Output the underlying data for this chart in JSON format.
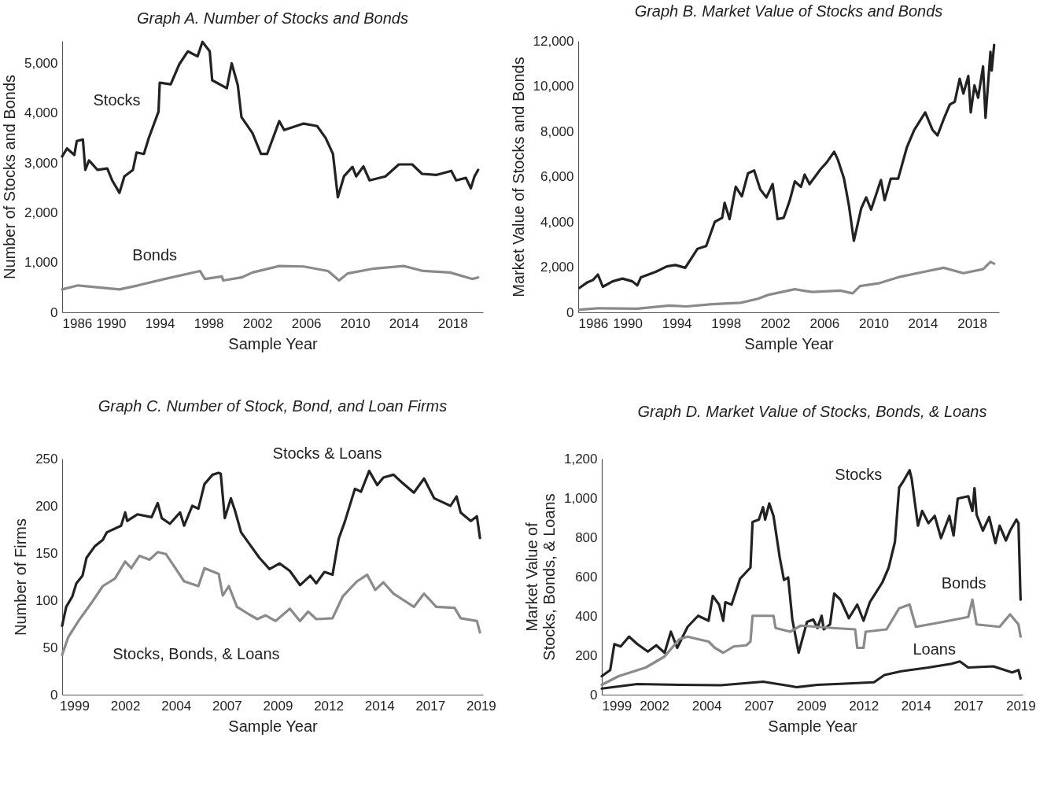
{
  "chart_data": [
    {
      "type": "line",
      "title": "Graph A. Number of Stocks and Bonds",
      "xlabel": "Sample Year",
      "ylabel": "Number of Stocks and Bonds",
      "xlim": [
        1986,
        2020.5
      ],
      "xticks": [
        1986,
        1990,
        1994,
        1998,
        2002,
        2006,
        2010,
        2014,
        2018
      ],
      "ylim": [
        0,
        5450
      ],
      "yticks": [
        0,
        {
          "value": 1000,
          "label": "1,000"
        },
        {
          "value": 2000,
          "label": "2,000"
        },
        {
          "value": 3000,
          "label": "3,000"
        },
        {
          "value": 4000,
          "label": "4,000"
        },
        {
          "value": 5000,
          "label": "5,000"
        }
      ],
      "series": [
        {
          "name": "Stocks",
          "color": "#222222",
          "x": [
            1986.0,
            1986.4,
            1987.0,
            1987.2,
            1987.7,
            1987.9,
            1988.2,
            1988.9,
            1989.7,
            1990.1,
            1990.7,
            1991.1,
            1991.8,
            1992.1,
            1992.7,
            1993.1,
            1993.9,
            1994.0,
            1994.9,
            1995.6,
            1996.3,
            1997.1,
            1997.5,
            1998.1,
            1998.3,
            1999.5,
            1999.9,
            2000.4,
            2000.7,
            2001.6,
            2002.3,
            2002.8,
            2003.8,
            2004.2,
            2005.8,
            2006.9,
            2007.6,
            2008.2,
            2008.6,
            2009.1,
            2009.8,
            2010.1,
            2010.7,
            2011.2,
            2012.5,
            2013.6,
            2014.7,
            2015.5,
            2016.7,
            2017.9,
            2018.3,
            2019.1,
            2019.5,
            2019.8,
            2020.1
          ],
          "values": [
            3130,
            3290,
            3160,
            3440,
            3470,
            2860,
            3050,
            2860,
            2890,
            2650,
            2400,
            2730,
            2860,
            3210,
            3180,
            3500,
            4030,
            4610,
            4580,
            4980,
            5240,
            5140,
            5430,
            5240,
            4660,
            4500,
            5000,
            4560,
            3920,
            3600,
            3180,
            3180,
            3840,
            3660,
            3790,
            3740,
            3500,
            3180,
            2310,
            2730,
            2920,
            2730,
            2930,
            2650,
            2730,
            2970,
            2970,
            2780,
            2760,
            2840,
            2650,
            2700,
            2490,
            2730,
            2860
          ]
        },
        {
          "name": "Bonds",
          "color": "#8a8a8a",
          "x": [
            1986.0,
            1987.3,
            1990.7,
            1992.2,
            1994.4,
            1997.3,
            1997.7,
            1999.1,
            1999.2,
            2000.7,
            2001.6,
            2003.8,
            2005.8,
            2007.8,
            2008.7,
            2009.4,
            2011.6,
            2014.0,
            2015.6,
            2017.8,
            2019.6,
            2020.1
          ],
          "values": [
            460,
            540,
            460,
            540,
            670,
            830,
            670,
            720,
            640,
            700,
            800,
            930,
            920,
            830,
            640,
            780,
            880,
            930,
            830,
            800,
            670,
            700
          ]
        }
      ]
    },
    {
      "type": "line",
      "title": "Graph B. Market Value of Stocks and Bonds",
      "xlabel": "Sample Year",
      "ylabel": "Market Value of Stocks and Bonds",
      "xlim": [
        1986,
        2020.2
      ],
      "xticks": [
        1986,
        1990,
        1994,
        1998,
        2002,
        2006,
        2010,
        2014,
        2018
      ],
      "ylim": [
        0,
        12000
      ],
      "yticks": [
        0,
        {
          "value": 2000,
          "label": "2,000"
        },
        {
          "value": 4000,
          "label": "4,000"
        },
        {
          "value": 6000,
          "label": "6,000"
        },
        {
          "value": 8000,
          "label": "8,000"
        },
        {
          "value": 10000,
          "label": "10,000"
        },
        {
          "value": 12000,
          "label": "12,000"
        }
      ],
      "series": [
        {
          "color": "#222222",
          "x": [
            1986.1,
            1986.7,
            1987.2,
            1987.6,
            1988.0,
            1988.8,
            1989.6,
            1990.4,
            1990.8,
            1991.1,
            1992.3,
            1993.2,
            1993.9,
            1994.7,
            1995.7,
            1996.4,
            1997.1,
            1997.7,
            1997.9,
            1998.3,
            1998.8,
            1999.3,
            1999.8,
            2000.3,
            2000.8,
            2001.3,
            2001.8,
            2002.2,
            2002.7,
            2003.2,
            2003.6,
            2004.1,
            2004.4,
            2004.8,
            2005.7,
            2006.2,
            2006.8,
            2007.1,
            2007.6,
            2008.0,
            2008.4,
            2009.0,
            2009.4,
            2009.8,
            2010.6,
            2010.9,
            2011.4,
            2012.0,
            2012.7,
            2013.3,
            2014.2,
            2014.8,
            2015.2,
            2015.7,
            2016.2,
            2016.6,
            2017.0,
            2017.3,
            2017.7,
            2017.9,
            2018.2,
            2018.5,
            2018.9,
            2019.1,
            2019.5,
            2019.6,
            2019.8
          ],
          "values": [
            1080,
            1310,
            1430,
            1670,
            1130,
            1370,
            1490,
            1370,
            1190,
            1550,
            1790,
            2030,
            2090,
            1970,
            2810,
            2930,
            4000,
            4180,
            4840,
            4120,
            5550,
            5130,
            6150,
            6270,
            5430,
            5080,
            5670,
            4120,
            4180,
            4960,
            5790,
            5550,
            6090,
            5670,
            6330,
            6630,
            7100,
            6750,
            5910,
            4720,
            3160,
            4600,
            5080,
            4540,
            5850,
            4960,
            5910,
            5910,
            7280,
            8060,
            8840,
            8060,
            7820,
            8540,
            9190,
            9310,
            10330,
            9670,
            10450,
            8840,
            10030,
            9490,
            10870,
            8600,
            11520,
            10690,
            11820
          ]
        },
        {
          "color": "#8a8a8a",
          "x": [
            1986.1,
            1987.6,
            1990.8,
            1993.4,
            1994.8,
            1996.9,
            1999.2,
            2000.6,
            2001.5,
            2003.6,
            2005.0,
            2007.3,
            2008.3,
            2008.9,
            2010.4,
            2012.0,
            2014.1,
            2015.7,
            2017.3,
            2018.9,
            2019.5,
            2019.8
          ],
          "values": [
            120,
            180,
            160,
            300,
            260,
            360,
            420,
            600,
            780,
            1020,
            900,
            960,
            840,
            1160,
            1280,
            1550,
            1790,
            1970,
            1730,
            1910,
            2230,
            2150
          ]
        }
      ]
    },
    {
      "type": "line",
      "title": "Graph C. Number of Stock, Bond, and Loan Firms",
      "xlabel": "Sample Year",
      "ylabel": "Number of Firms",
      "xlim": [
        1998.4,
        2019.1
      ],
      "xticks": [
        1999,
        {
          "value": 2001.5,
          "label": "2002"
        },
        2004,
        {
          "value": 2006.5,
          "label": "2007"
        },
        2009,
        {
          "value": 2011.5,
          "label": "2012"
        },
        2014,
        {
          "value": 2016.5,
          "label": "2017"
        },
        2019
      ],
      "ylim": [
        0,
        250
      ],
      "yticks": [
        0,
        50,
        100,
        150,
        200,
        250
      ],
      "series": [
        {
          "name": "Stocks & Loans",
          "color": "#222222",
          "x": [
            1998.4,
            1998.6,
            1998.9,
            1999.1,
            1999.4,
            1999.6,
            2000.0,
            2000.4,
            2000.6,
            2001.3,
            2001.5,
            2001.6,
            2002.1,
            2002.8,
            2003.1,
            2003.3,
            2003.7,
            2004.2,
            2004.4,
            2004.8,
            2005.1,
            2005.4,
            2005.8,
            2006.1,
            2006.2,
            2006.4,
            2006.7,
            2006.9,
            2007.2,
            2007.7,
            2008.1,
            2008.6,
            2009.1,
            2009.6,
            2010.1,
            2010.6,
            2010.9,
            2011.3,
            2011.7,
            2012.0,
            2012.3,
            2012.8,
            2013.1,
            2013.5,
            2013.9,
            2014.2,
            2014.7,
            2015.1,
            2015.7,
            2016.2,
            2016.7,
            2017.5,
            2017.8,
            2018.0,
            2018.5,
            2018.8,
            2018.95
          ],
          "values": [
            73,
            93,
            104,
            118,
            126,
            145,
            157,
            164,
            172,
            179,
            193,
            184,
            191,
            188,
            203,
            187,
            181,
            193,
            179,
            200,
            197,
            223,
            233,
            235,
            234,
            187,
            208,
            195,
            172,
            157,
            145,
            133,
            139,
            131,
            116,
            126,
            118,
            130,
            127,
            165,
            183,
            218,
            215,
            237,
            222,
            230,
            233,
            225,
            214,
            229,
            208,
            200,
            210,
            193,
            184,
            189,
            166
          ]
        },
        {
          "name": "Stocks, Bonds, & Loans",
          "color": "#8a8a8a",
          "x": [
            1998.4,
            1998.7,
            1999.2,
            1999.9,
            2000.4,
            2001.0,
            2001.5,
            2001.8,
            2002.2,
            2002.7,
            2003.1,
            2003.5,
            2004.0,
            2004.4,
            2005.1,
            2005.4,
            2006.1,
            2006.3,
            2006.6,
            2007.0,
            2007.6,
            2008.0,
            2008.4,
            2008.9,
            2009.6,
            2010.1,
            2010.5,
            2010.9,
            2011.7,
            2012.2,
            2012.9,
            2013.4,
            2013.8,
            2014.2,
            2014.7,
            2015.7,
            2016.2,
            2016.8,
            2017.7,
            2018.0,
            2018.8,
            2018.95
          ],
          "values": [
            42,
            61,
            78,
            99,
            115,
            123,
            141,
            134,
            147,
            143,
            151,
            149,
            133,
            120,
            115,
            134,
            128,
            105,
            115,
            93,
            85,
            80,
            84,
            78,
            91,
            78,
            88,
            80,
            81,
            104,
            120,
            127,
            111,
            119,
            107,
            93,
            107,
            93,
            92,
            81,
            78,
            66
          ]
        }
      ]
    },
    {
      "type": "line",
      "title": "Graph D. Market Value of Stocks, Bonds, & Loans",
      "xlabel": "Sample Year",
      "ylabel": "Market Value of Stocks, Bonds, & Loans",
      "xlim": [
        1999,
        2019.1
      ],
      "xticks": [
        1999,
        {
          "value": 2001.5,
          "label": "2002"
        },
        2004,
        {
          "value": 2006.5,
          "label": "2007"
        },
        2009,
        {
          "value": 2011.5,
          "label": "2012"
        },
        2014,
        {
          "value": 2016.5,
          "label": "2017"
        },
        2019
      ],
      "ylim": [
        0,
        1200
      ],
      "yticks": [
        0,
        200,
        400,
        600,
        800,
        {
          "value": 1000,
          "label": "1,000"
        },
        {
          "value": 1200,
          "label": "1,200"
        }
      ],
      "series": [
        {
          "name": "Stocks",
          "color": "#222222",
          "x": [
            1999.0,
            1999.4,
            1999.6,
            1999.9,
            2000.3,
            2000.7,
            2001.2,
            2001.6,
            2002.0,
            2002.3,
            2002.6,
            2003.1,
            2003.6,
            2004.1,
            2004.3,
            2004.6,
            2004.8,
            2004.9,
            2005.2,
            2005.6,
            2006.1,
            2006.2,
            2006.5,
            2006.7,
            2006.8,
            2007.0,
            2007.2,
            2007.5,
            2007.7,
            2007.9,
            2008.1,
            2008.4,
            2008.8,
            2009.1,
            2009.3,
            2009.5,
            2009.6,
            2009.9,
            2010.1,
            2010.4,
            2010.8,
            2011.2,
            2011.5,
            2011.8,
            2012.4,
            2012.7,
            2013.0,
            2013.2,
            2013.4,
            2013.7,
            2013.8,
            2014.1,
            2014.3,
            2014.6,
            2014.9,
            2015.2,
            2015.6,
            2015.8,
            2016.0,
            2016.5,
            2016.7,
            2016.8,
            2016.9,
            2017.2,
            2017.5,
            2017.8,
            2018.0,
            2018.3,
            2018.5,
            2018.8,
            2018.9,
            2019.0
          ],
          "values": [
            94,
            125,
            257,
            245,
            295,
            257,
            219,
            251,
            213,
            320,
            238,
            345,
            401,
            376,
            502,
            458,
            376,
            470,
            458,
            589,
            646,
            878,
            890,
            953,
            890,
            972,
            909,
            696,
            583,
            596,
            382,
            213,
            370,
            382,
            339,
            401,
            332,
            357,
            514,
            483,
            389,
            458,
            376,
            470,
            571,
            646,
            777,
            1053,
            1085,
            1141,
            1097,
            859,
            934,
            872,
            909,
            796,
            909,
            809,
            997,
            1009,
            934,
            1050,
            915,
            834,
            903,
            771,
            859,
            784,
            834,
            890,
            872,
            483
          ]
        },
        {
          "name": "Bonds",
          "color": "#8a8a8a",
          "x": [
            1999.0,
            1999.8,
            2001.1,
            2002.0,
            2002.7,
            2003.1,
            2003.6,
            2004.1,
            2004.4,
            2004.8,
            2005.3,
            2005.9,
            2006.1,
            2006.2,
            2006.7,
            2007.2,
            2007.3,
            2008.0,
            2008.5,
            2009.3,
            2010.0,
            2011.1,
            2011.2,
            2011.5,
            2011.6,
            2012.6,
            2013.2,
            2013.7,
            2014.0,
            2015.3,
            2016.5,
            2016.7,
            2016.9,
            2018.0,
            2018.5,
            2018.9,
            2019.0
          ],
          "values": [
            50,
            94,
            138,
            194,
            282,
            295,
            282,
            270,
            238,
            213,
            245,
            251,
            270,
            401,
            401,
            401,
            339,
            320,
            351,
            345,
            339,
            332,
            238,
            238,
            320,
            332,
            439,
            458,
            345,
            370,
            395,
            483,
            357,
            345,
            408,
            357,
            295
          ]
        },
        {
          "name": "Loans",
          "color": "#222222",
          "x": [
            1999.0,
            2000.7,
            2002.7,
            2004.7,
            2006.7,
            2008.0,
            2008.3,
            2009.3,
            2010.6,
            2012.0,
            2012.5,
            2013.3,
            2014.6,
            2015.7,
            2016.1,
            2016.5,
            2017.7,
            2018.6,
            2018.9,
            2019.0
          ],
          "values": [
            31,
            54,
            50,
            48,
            66,
            44,
            38,
            50,
            56,
            63,
            100,
            119,
            138,
            157,
            169,
            138,
            144,
            113,
            125,
            82
          ]
        }
      ]
    }
  ]
}
